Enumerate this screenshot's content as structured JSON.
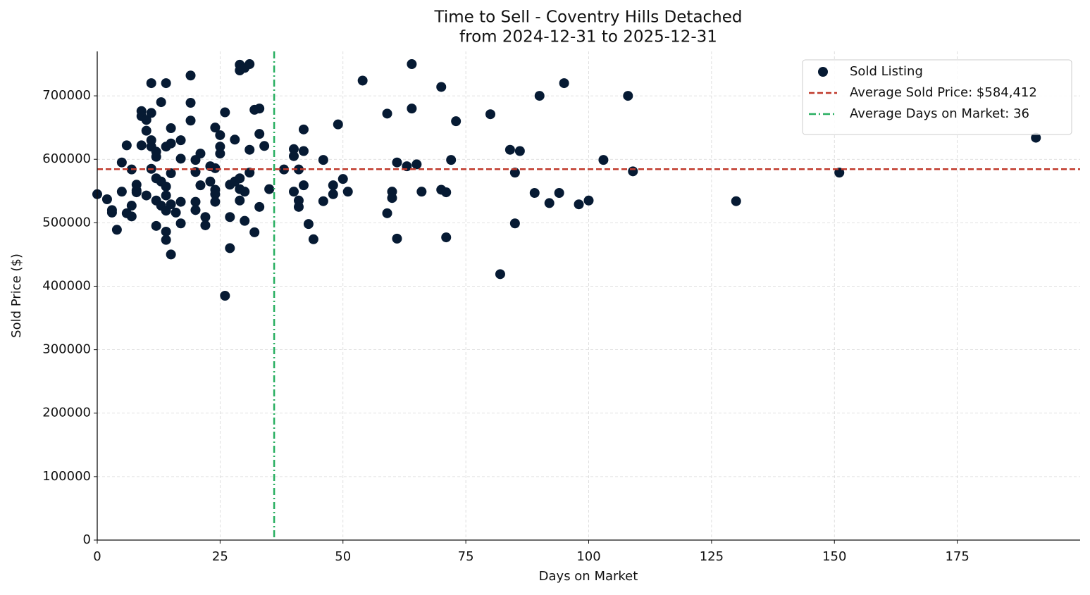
{
  "chart_data": {
    "type": "scatter",
    "title": "Time to Sell - Coventry Hills Detached",
    "subtitle": "from 2024-12-31 to 2025-12-31",
    "x_label": "Days on Market",
    "y_label": "Sold Price ($)",
    "xlim": [
      0,
      200
    ],
    "ylim": [
      0,
      770000
    ],
    "xticks": [
      0,
      25,
      50,
      75,
      100,
      125,
      150,
      175
    ],
    "yticks": [
      0,
      100000,
      200000,
      300000,
      400000,
      500000,
      600000,
      700000
    ],
    "grid": true,
    "legend": "upper right",
    "series": [
      {
        "name": "Sold Listing",
        "color": "#061a33",
        "x": [
          0,
          2,
          3,
          3,
          4,
          5,
          5,
          6,
          6,
          7,
          7,
          7,
          8,
          8,
          8,
          9,
          9,
          9,
          10,
          10,
          10,
          11,
          11,
          11,
          11,
          11,
          12,
          12,
          12,
          12,
          12,
          13,
          13,
          13,
          14,
          14,
          14,
          14,
          14,
          14,
          14,
          15,
          15,
          15,
          15,
          15,
          16,
          17,
          17,
          17,
          17,
          19,
          19,
          19,
          20,
          20,
          20,
          20,
          21,
          21,
          22,
          22,
          23,
          23,
          24,
          24,
          24,
          24,
          24,
          25,
          25,
          25,
          26,
          26,
          27,
          27,
          27,
          28,
          28,
          29,
          29,
          29,
          29,
          29,
          30,
          30,
          30,
          31,
          31,
          31,
          32,
          32,
          33,
          33,
          33,
          34,
          35,
          38,
          40,
          40,
          40,
          41,
          41,
          41,
          42,
          42,
          42,
          43,
          44,
          46,
          46,
          48,
          48,
          49,
          50,
          51,
          54,
          59,
          59,
          60,
          60,
          61,
          61,
          63,
          64,
          64,
          65,
          66,
          70,
          70,
          71,
          71,
          72,
          73,
          80,
          82,
          84,
          85,
          85,
          86,
          89,
          90,
          92,
          94,
          95,
          98,
          100,
          103,
          108,
          109,
          130,
          151,
          191
        ],
        "y": [
          545000,
          537000,
          520000,
          516000,
          489000,
          549000,
          595000,
          622000,
          515000,
          527000,
          510000,
          584000,
          560000,
          551000,
          548000,
          676000,
          668000,
          622000,
          662000,
          645000,
          543000,
          720000,
          673000,
          630000,
          620000,
          585000,
          612000,
          604000,
          570000,
          535000,
          495000,
          690000,
          565000,
          527000,
          720000,
          620000,
          557000,
          543000,
          519000,
          486000,
          473000,
          649000,
          625000,
          578000,
          529000,
          450000,
          516000,
          630000,
          601000,
          533000,
          499000,
          732000,
          689000,
          661000,
          599000,
          580000,
          533000,
          520000,
          609000,
          559000,
          509000,
          496000,
          589000,
          565000,
          650000,
          586000,
          552000,
          545000,
          533000,
          638000,
          620000,
          609000,
          674000,
          385000,
          509000,
          460000,
          560000,
          631000,
          565000,
          749000,
          740000,
          570000,
          535000,
          553000,
          744000,
          549000,
          503000,
          750000,
          615000,
          579000,
          678000,
          485000,
          680000,
          640000,
          525000,
          621000,
          553000,
          584000,
          616000,
          605000,
          549000,
          584000,
          535000,
          525000,
          647000,
          613000,
          559000,
          498000,
          474000,
          599000,
          534000,
          559000,
          545000,
          655000,
          569000,
          549000,
          724000,
          672000,
          515000,
          549000,
          539000,
          595000,
          475000,
          589000,
          750000,
          680000,
          592000,
          549000,
          714000,
          552000,
          548000,
          477000,
          599000,
          660000,
          671000,
          419000,
          615000,
          579000,
          499000,
          613000,
          547000,
          700000,
          531000,
          547000,
          720000,
          529000,
          535000,
          599000,
          700000,
          581000,
          534000,
          579000,
          634000
        ]
      }
    ],
    "hlines": [
      {
        "value": 584412,
        "label": "Average Sold Price: $584,412",
        "color": "#c0392b",
        "dash": "8 4"
      }
    ],
    "vlines": [
      {
        "value": 36,
        "label": "Average Days on Market: 36",
        "color": "#27ae60",
        "dash": "10 4 2 4"
      }
    ]
  }
}
